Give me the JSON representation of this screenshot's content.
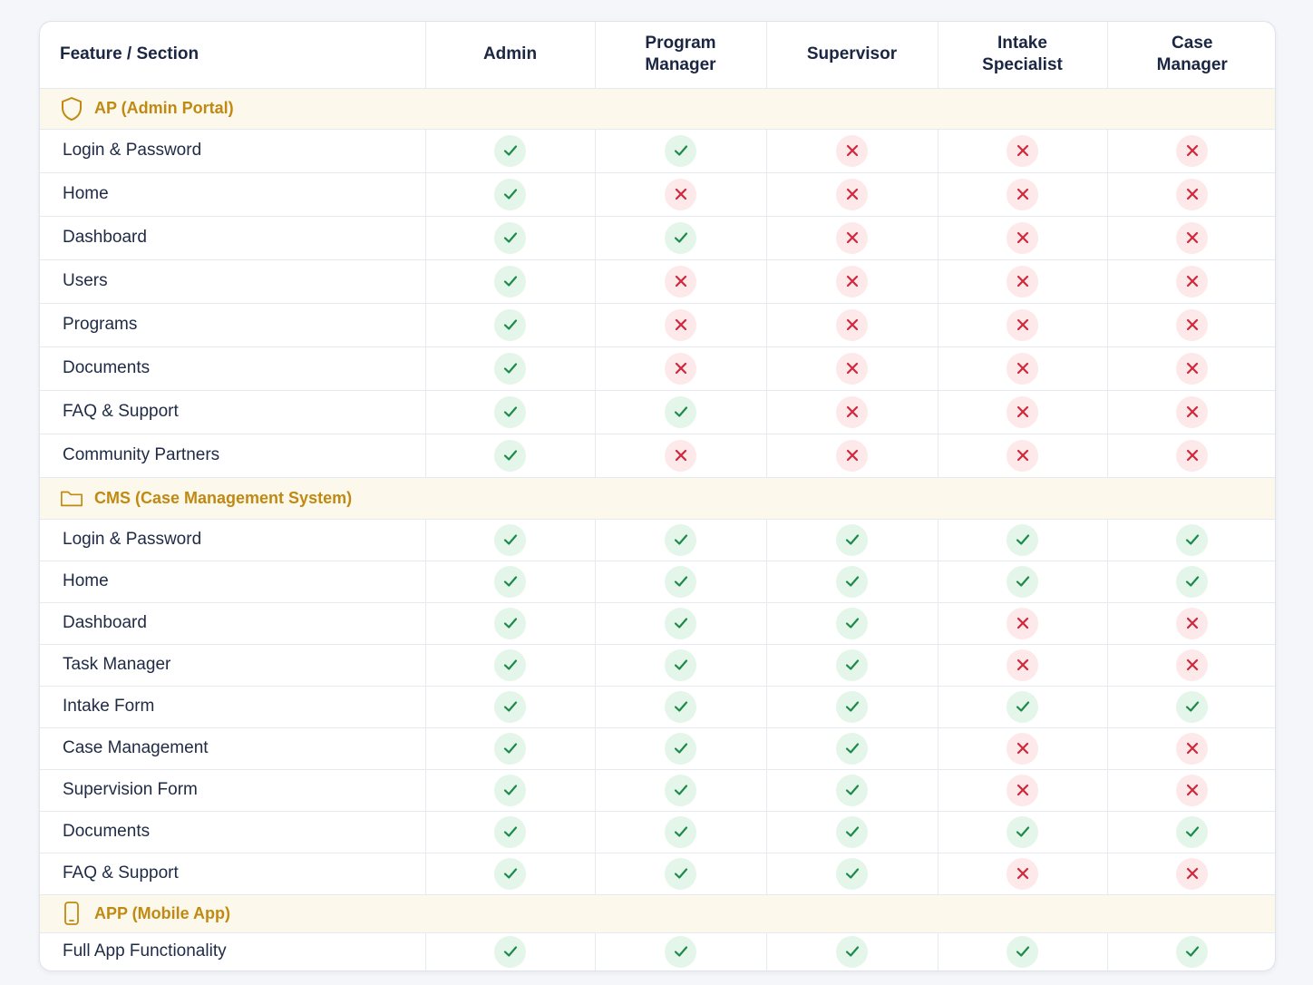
{
  "header": {
    "feature_label": "Feature / Section",
    "roles": [
      "Admin",
      "Program\nManager",
      "Supervisor",
      "Intake\nSpecialist",
      "Case\nManager"
    ]
  },
  "colors": {
    "allowed": "#1e8a4a",
    "allowed_bg": "#e4f5ea",
    "denied": "#d0273a",
    "denied_bg": "#fde8ea",
    "section_text": "#c08a12",
    "section_bg": "#fdf8ec"
  },
  "sections": [
    {
      "title": "AP (Admin Portal)",
      "icon": "shield-icon",
      "rows": [
        {
          "feature": "Login & Password",
          "access": [
            true,
            true,
            false,
            false,
            false
          ]
        },
        {
          "feature": "Home",
          "access": [
            true,
            false,
            false,
            false,
            false
          ]
        },
        {
          "feature": "Dashboard",
          "access": [
            true,
            true,
            false,
            false,
            false
          ]
        },
        {
          "feature": "Users",
          "access": [
            true,
            false,
            false,
            false,
            false
          ]
        },
        {
          "feature": "Programs",
          "access": [
            true,
            false,
            false,
            false,
            false
          ]
        },
        {
          "feature": "Documents",
          "access": [
            true,
            false,
            false,
            false,
            false
          ]
        },
        {
          "feature": "FAQ & Support",
          "access": [
            true,
            true,
            false,
            false,
            false
          ]
        },
        {
          "feature": "Community Partners",
          "access": [
            true,
            false,
            false,
            false,
            false
          ]
        }
      ]
    },
    {
      "title": "CMS (Case Management System)",
      "icon": "folder-icon",
      "rows": [
        {
          "feature": "Login & Password",
          "access": [
            true,
            true,
            true,
            true,
            true
          ]
        },
        {
          "feature": "Home",
          "access": [
            true,
            true,
            true,
            true,
            true
          ]
        },
        {
          "feature": "Dashboard",
          "access": [
            true,
            true,
            true,
            false,
            false
          ]
        },
        {
          "feature": "Task Manager",
          "access": [
            true,
            true,
            true,
            false,
            false
          ]
        },
        {
          "feature": "Intake Form",
          "access": [
            true,
            true,
            true,
            true,
            true
          ]
        },
        {
          "feature": "Case Management",
          "access": [
            true,
            true,
            true,
            false,
            false
          ]
        },
        {
          "feature": "Supervision Form",
          "access": [
            true,
            true,
            true,
            false,
            false
          ]
        },
        {
          "feature": "Documents",
          "access": [
            true,
            true,
            true,
            true,
            true
          ]
        },
        {
          "feature": "FAQ & Support",
          "access": [
            true,
            true,
            true,
            false,
            false
          ]
        }
      ]
    },
    {
      "title": "APP (Mobile App)",
      "icon": "mobile-phone-icon",
      "rows": [
        {
          "feature": "Full App Functionality",
          "access": [
            true,
            true,
            true,
            true,
            true
          ]
        }
      ]
    }
  ]
}
